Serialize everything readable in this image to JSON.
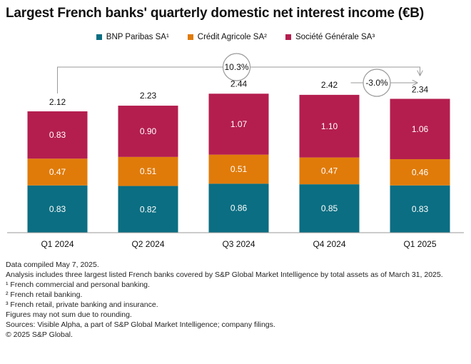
{
  "title": "Largest French banks' quarterly domestic net interest income (€B)",
  "chart_data": {
    "type": "bar",
    "stacked": true,
    "categories": [
      "Q1 2024",
      "Q2 2024",
      "Q3 2024",
      "Q4 2024",
      "Q1 2025"
    ],
    "series": [
      {
        "name": "BNP Paribas SA¹",
        "color": "#0b6e82",
        "values": [
          0.83,
          0.82,
          0.86,
          0.85,
          0.83
        ],
        "labels": [
          "0.83",
          "0.82",
          "0.86",
          "0.85",
          "0.83"
        ]
      },
      {
        "name": "Crédit Agricole SA²",
        "color": "#e07b0a",
        "values": [
          0.47,
          0.51,
          0.51,
          0.47,
          0.46
        ],
        "labels": [
          "0.47",
          "0.51",
          "0.51",
          "0.47",
          "0.46"
        ]
      },
      {
        "name": "Société Générale SA³",
        "color": "#b41e4f",
        "values": [
          0.83,
          0.9,
          1.07,
          1.1,
          1.06
        ],
        "labels": [
          "0.83",
          "0.90",
          "1.07",
          "1.10",
          "1.06"
        ]
      }
    ],
    "totals": [
      2.12,
      2.23,
      2.44,
      2.42,
      2.34
    ],
    "total_labels": [
      "2.12",
      "2.23",
      "2.44",
      "2.42",
      "2.34"
    ],
    "annotations": [
      {
        "text": "10.3%",
        "from": "Q1 2024",
        "to": "Q1 2025"
      },
      {
        "text": "-3.0%",
        "from": "Q4 2024",
        "to": "Q1 2025"
      }
    ],
    "legend_position": "top-center",
    "grid": false,
    "ylim": [
      0,
      2.6
    ]
  },
  "notes": [
    "Data compiled May 7, 2025.",
    "Analysis includes three largest listed French banks covered by S&P Global Market Intelligence by total assets as of March 31, 2025.",
    "¹ French commercial and personal banking.",
    "² French retail banking.",
    "³ French retail, private banking and insurance.",
    "Figures may not sum due to rounding.",
    "Sources: Visible Alpha, a part of S&P Global Market Intelligence; company filings.",
    "© 2025 S&P Global."
  ]
}
